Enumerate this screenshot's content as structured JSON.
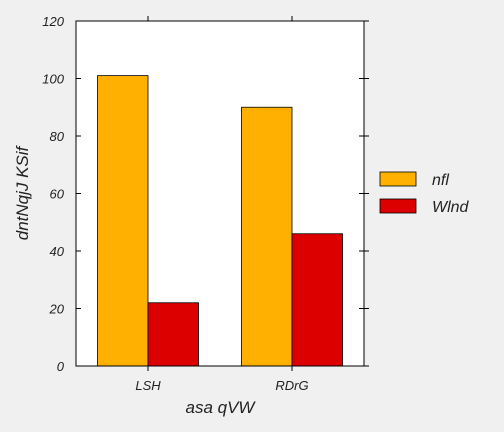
{
  "chart_data": {
    "type": "bar",
    "categories": [
      "LSH",
      "RDrG"
    ],
    "series": [
      {
        "name": "nfl",
        "values": [
          101,
          90
        ],
        "color": "#ffb000"
      },
      {
        "name": "Wlnd",
        "values": [
          22,
          46
        ],
        "color": "#dd0000"
      }
    ],
    "xlabel": "asa qVW",
    "ylabel": "dntNqjJ KSif",
    "ylim": [
      0,
      120
    ],
    "yticks": [
      0,
      20,
      40,
      60,
      80,
      100,
      120
    ],
    "grid": false,
    "legend_position": "right"
  }
}
